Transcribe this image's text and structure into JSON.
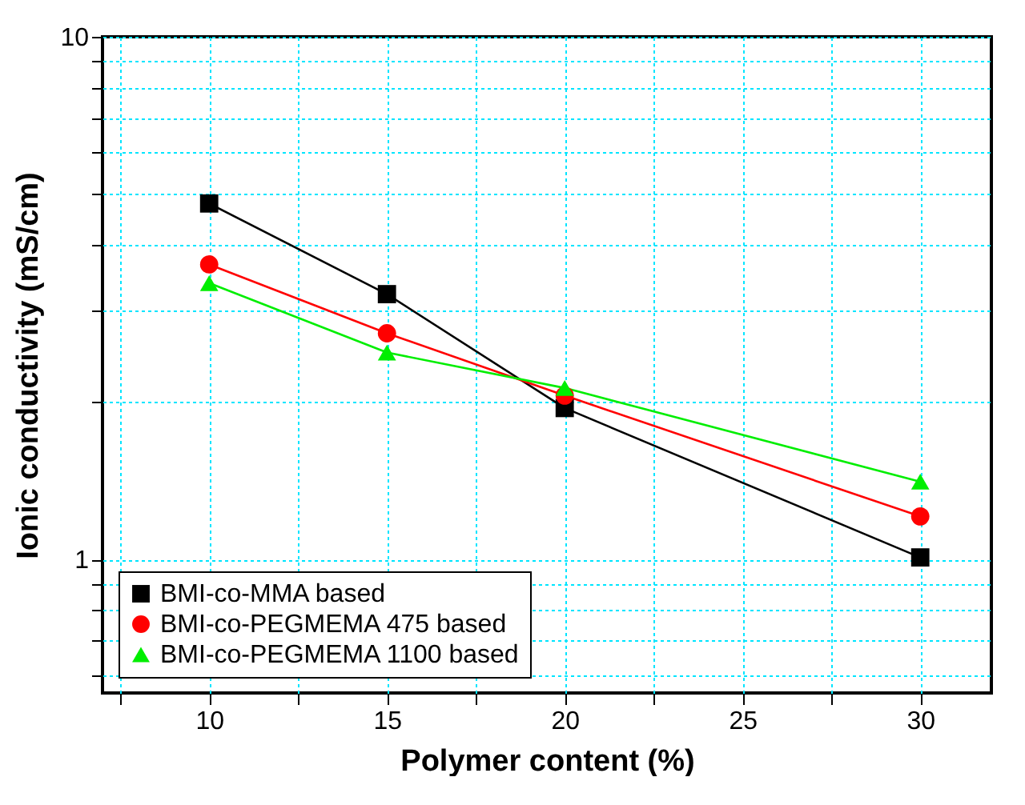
{
  "chart_data": {
    "type": "line",
    "xlabel": "Polymer content (%)",
    "ylabel": "Ionic conductivity (mS/cm)",
    "x": [
      10,
      15,
      20,
      30
    ],
    "series": [
      {
        "name": "BMI-co-MMA based",
        "color": "#000000",
        "marker": "square",
        "values": [
          4.8,
          3.22,
          1.95,
          1.01
        ]
      },
      {
        "name": "BMI-co-PEGMEMA 475 based",
        "color": "#ff0000",
        "marker": "circle",
        "values": [
          3.67,
          2.71,
          2.06,
          1.21
        ]
      },
      {
        "name": "BMI-co-PEGMEMA 1100 based",
        "color": "#00ee00",
        "marker": "triangle",
        "values": [
          3.38,
          2.49,
          2.13,
          1.41
        ]
      }
    ],
    "xlim": [
      7,
      32
    ],
    "xticks": [
      {
        "value": 7.5,
        "label": null
      },
      10,
      {
        "value": 12.5,
        "label": null
      },
      15,
      {
        "value": 17.5,
        "label": null
      },
      20,
      {
        "value": 22.5,
        "label": null
      },
      25,
      {
        "value": 27.5,
        "label": null
      },
      30
    ],
    "ylim": [
      0.556,
      10
    ],
    "yticks": [
      {
        "value": 0.6,
        "label": null
      },
      {
        "value": 0.7,
        "label": null
      },
      {
        "value": 0.8,
        "label": null
      },
      {
        "value": 0.9,
        "label": null
      },
      1,
      {
        "value": 2,
        "label": null
      },
      {
        "value": 3,
        "label": null
      },
      {
        "value": 4,
        "label": null
      },
      {
        "value": 5,
        "label": null
      },
      {
        "value": 6,
        "label": null
      },
      {
        "value": 7,
        "label": null
      },
      {
        "value": 8,
        "label": null
      },
      {
        "value": 9,
        "label": null
      },
      10
    ],
    "log": "y",
    "grid": true,
    "legend": "bottom left",
    "line_style": "solid"
  }
}
